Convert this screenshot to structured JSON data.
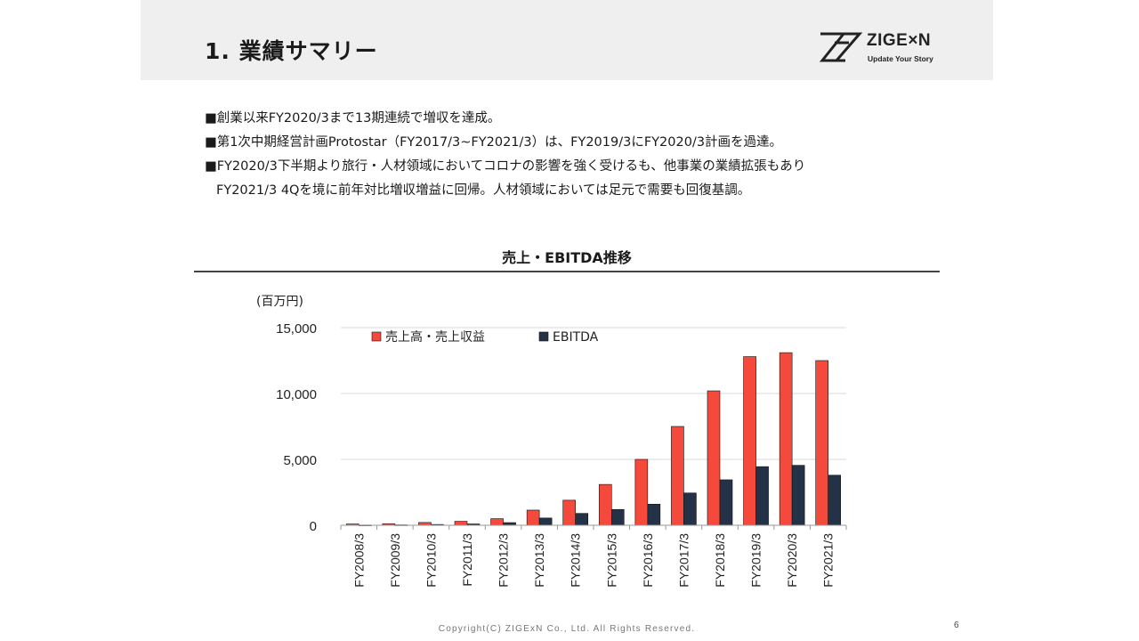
{
  "header": {
    "title": "1. 業績サマリー",
    "logo": {
      "word": "ZIGE×N",
      "tagline": "Update Your Story"
    }
  },
  "bullets": [
    "■創業以来FY2020/3まで13期連続で増収を達成。",
    "■第1次中期経営計画Protostar（FY2017/3~FY2021/3）は、FY2019/3にFY2020/3計画を過達。",
    "■FY2020/3下半期より旅行・人材領域においてコロナの影響を強く受けるも、他事業の業績拡張もあり",
    "FY2021/3 4Qを境に前年対比増収増益に回帰。人材領域においては足元で需要も回復基調。"
  ],
  "footer": {
    "copyright": "Copyright(C)  ZIGExN Co., Ltd. All Rights Reserved.",
    "page": "6"
  },
  "chart_data": {
    "type": "bar",
    "title": "売上・EBITDA推移",
    "ylabel": "(百万円)",
    "ylim": [
      0,
      15000
    ],
    "yticks": [
      0,
      5000,
      10000,
      15000
    ],
    "ytick_labels": [
      "0",
      "5,000",
      "10,000",
      "15,000"
    ],
    "legend_position": "top",
    "grid": true,
    "categories": [
      "FY2008/3",
      "FY2009/3",
      "FY2010/3",
      "FY2011/3",
      "FY2012/3",
      "FY2013/3",
      "FY2014/3",
      "FY2015/3",
      "FY2016/3",
      "FY2017/3",
      "FY2018/3",
      "FY2019/3",
      "FY2020/3",
      "FY2021/3"
    ],
    "series": [
      {
        "name": "売上高・売上収益",
        "color": "#f5493b",
        "values": [
          100,
          120,
          210,
          300,
          500,
          1150,
          1900,
          3100,
          5000,
          7500,
          10200,
          12800,
          13100,
          12500
        ]
      },
      {
        "name": "EBITDA",
        "color": "#243248",
        "values": [
          20,
          30,
          60,
          100,
          200,
          550,
          900,
          1200,
          1600,
          2450,
          3450,
          4450,
          4550,
          3800
        ]
      }
    ]
  }
}
